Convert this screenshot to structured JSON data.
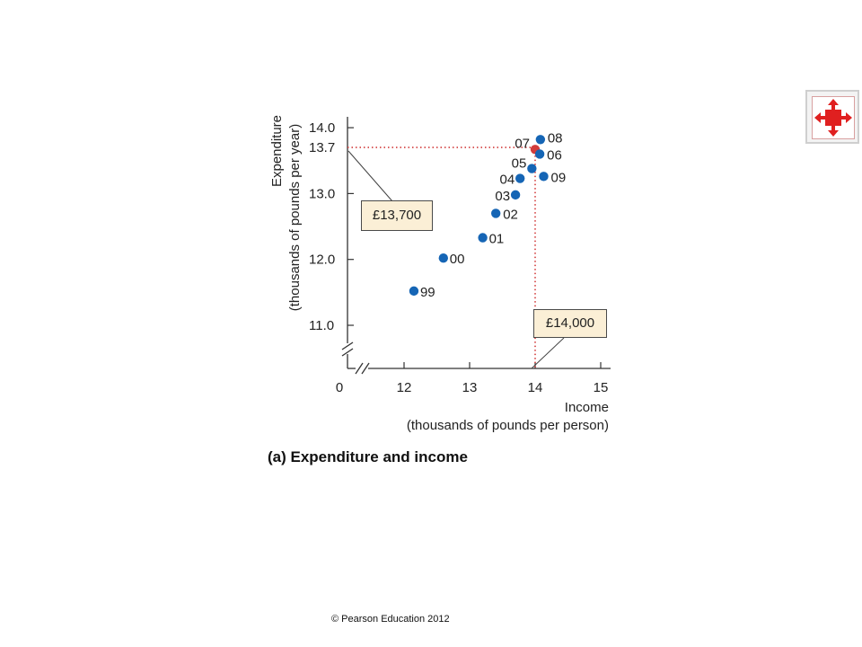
{
  "chart_data": {
    "type": "scatter",
    "xlabel": [
      "Income",
      "(thousands of pounds per person)"
    ],
    "ylabel": [
      "Expenditure",
      "(thousands of pounds per year)"
    ],
    "x_ticks": [
      "0",
      "12",
      "13",
      "14",
      "15"
    ],
    "y_ticks": [
      "11.0",
      "12.0",
      "13.0",
      "14.0"
    ],
    "highlight_ticks": {
      "x": "14",
      "y": "13.7"
    },
    "xlim": [
      11.5,
      15
    ],
    "ylim": [
      10.4,
      14.0
    ],
    "axis_break": true,
    "points": [
      {
        "label": "99",
        "x": 12.15,
        "y": 11.52
      },
      {
        "label": "00",
        "x": 12.6,
        "y": 12.02
      },
      {
        "label": "01",
        "x": 13.2,
        "y": 12.33
      },
      {
        "label": "02",
        "x": 13.4,
        "y": 12.7
      },
      {
        "label": "03",
        "x": 13.7,
        "y": 12.98
      },
      {
        "label": "04",
        "x": 13.77,
        "y": 13.23
      },
      {
        "label": "05",
        "x": 13.95,
        "y": 13.38
      },
      {
        "label": "07",
        "x": 14.0,
        "y": 13.67,
        "highlight": true
      },
      {
        "label": "08",
        "x": 14.08,
        "y": 13.82
      },
      {
        "label": "06",
        "x": 14.07,
        "y": 13.6
      },
      {
        "label": "09",
        "x": 14.13,
        "y": 13.26
      }
    ],
    "reference": {
      "x": 14,
      "y": 13.7
    },
    "callouts": {
      "y_value": "£13,700",
      "x_value": "£14,000"
    },
    "colors": {
      "points": "#1565b5",
      "highlight": "#d23c3c",
      "reference": "#d23c3c"
    },
    "caption": "(a) Expenditure and income"
  },
  "footer": {
    "copyright": "© Pearson Education 2012"
  },
  "nav": {
    "icon": "expand-arrows-icon"
  }
}
